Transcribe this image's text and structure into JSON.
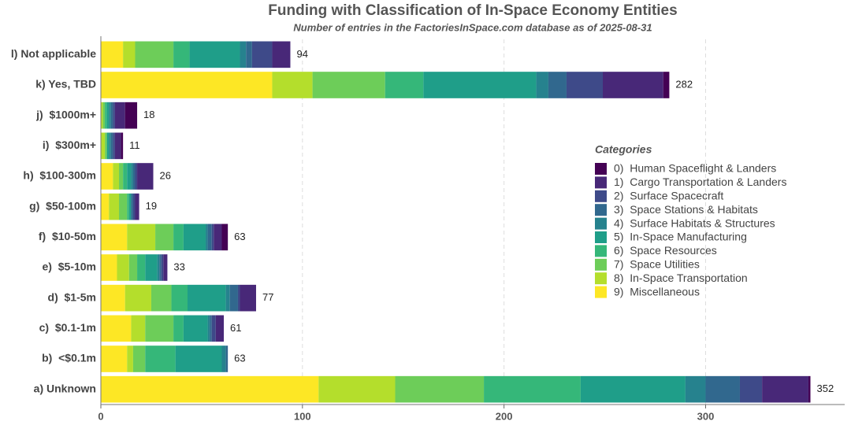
{
  "chart_data": {
    "type": "stacked-barh",
    "title": "Funding with Classification of In-Space Economy Entities",
    "subtitle": "Number of entries in the FactoriesInSpace.com database as of 2025-08-31",
    "legend_title": "Categories",
    "categories": [
      "l) Not applicable",
      "k) Yes, TBD",
      "j)  $1000m+",
      "i)  $300m+",
      "h)  $100-300m",
      "g)  $50-100m",
      "f)  $10-50m",
      "e)  $5-10m",
      "d)  $1-5m",
      "c)  $0.1-1m",
      "b)  <$0.1m",
      "a) Unknown"
    ],
    "totals": [
      94,
      282,
      18,
      11,
      26,
      19,
      63,
      33,
      77,
      61,
      63,
      352
    ],
    "series": [
      {
        "name": "0)  Human Spaceflight & Landers",
        "color": "#440154",
        "values": [
          0,
          3,
          6,
          1,
          0,
          0,
          3,
          0,
          0,
          0,
          0,
          1
        ]
      },
      {
        "name": "1)  Cargo Transportation & Landers",
        "color": "#482878",
        "values": [
          9,
          30,
          5,
          3,
          8,
          2,
          4,
          2,
          8,
          4,
          0,
          23
        ]
      },
      {
        "name": "2)  Surface Spacecraft",
        "color": "#3e4a89",
        "values": [
          10,
          18,
          1,
          1,
          1,
          1,
          1,
          1,
          1,
          2,
          0,
          11
        ]
      },
      {
        "name": "3)  Space Stations & Habitats",
        "color": "#31688e",
        "values": [
          3,
          9,
          1,
          1,
          1,
          1,
          2,
          1,
          4,
          1,
          1,
          17
        ]
      },
      {
        "name": "4)  Surface Habitats & Structures",
        "color": "#26828e",
        "values": [
          3,
          6,
          1,
          1,
          1,
          0,
          1,
          1,
          2,
          1,
          2,
          10
        ]
      },
      {
        "name": "5)  In-Space Manufacturing",
        "color": "#1f9e89",
        "values": [
          25,
          56,
          1,
          1,
          2,
          1,
          11,
          6,
          19,
          12,
          23,
          52
        ]
      },
      {
        "name": "6)  Space Resources",
        "color": "#35b779",
        "values": [
          8,
          19,
          1,
          0,
          2,
          1,
          5,
          4,
          8,
          5,
          15,
          48
        ]
      },
      {
        "name": "7)  Space Utilities",
        "color": "#6dcd59",
        "values": [
          19,
          36,
          1,
          1,
          2,
          4,
          9,
          4,
          10,
          14,
          6,
          44
        ]
      },
      {
        "name": "8)  In-Space Transportation",
        "color": "#b4de2c",
        "values": [
          6,
          20,
          1,
          2,
          3,
          5,
          14,
          6,
          13,
          7,
          3,
          38
        ]
      },
      {
        "name": "9)  Miscellaneous",
        "color": "#fde725",
        "values": [
          11,
          85,
          0,
          0,
          6,
          4,
          13,
          8,
          12,
          15,
          13,
          108
        ]
      }
    ],
    "xlim": [
      0,
      369
    ],
    "xticks": [
      0,
      100,
      200,
      300
    ],
    "grid": true
  }
}
